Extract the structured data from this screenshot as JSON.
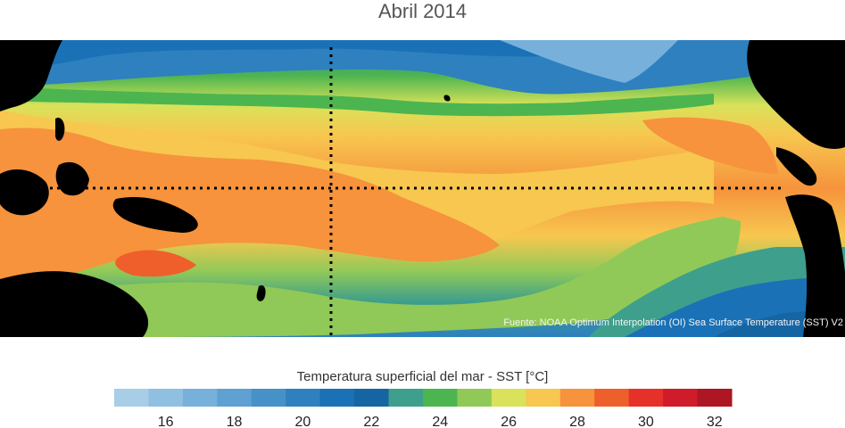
{
  "title": "Abril 2014",
  "map": {
    "source_credit": "Fuente: NOAA Optimum Interpolation (OI) Sea Surface Temperature (SST) V2",
    "land_color": "#000000",
    "gridline_style": "dotted",
    "reference_lines": [
      "equator",
      "dateline"
    ]
  },
  "colorbar": {
    "title": "Temperatura superficial del mar - SST  [°C]",
    "min": 15,
    "step": 1,
    "colors": [
      "#a8cde6",
      "#8fc0e2",
      "#77b1db",
      "#5ea1d2",
      "#4691c8",
      "#2e80bf",
      "#1a71b5",
      "#1565a3",
      "#3e9f8c",
      "#4cb54f",
      "#90c957",
      "#d9e25a",
      "#f7c74f",
      "#f6933c",
      "#ef5f2c",
      "#e6312a",
      "#cf1b2a",
      "#ad1622"
    ],
    "ticks": [
      16,
      18,
      20,
      22,
      24,
      26,
      28,
      30,
      32
    ]
  }
}
